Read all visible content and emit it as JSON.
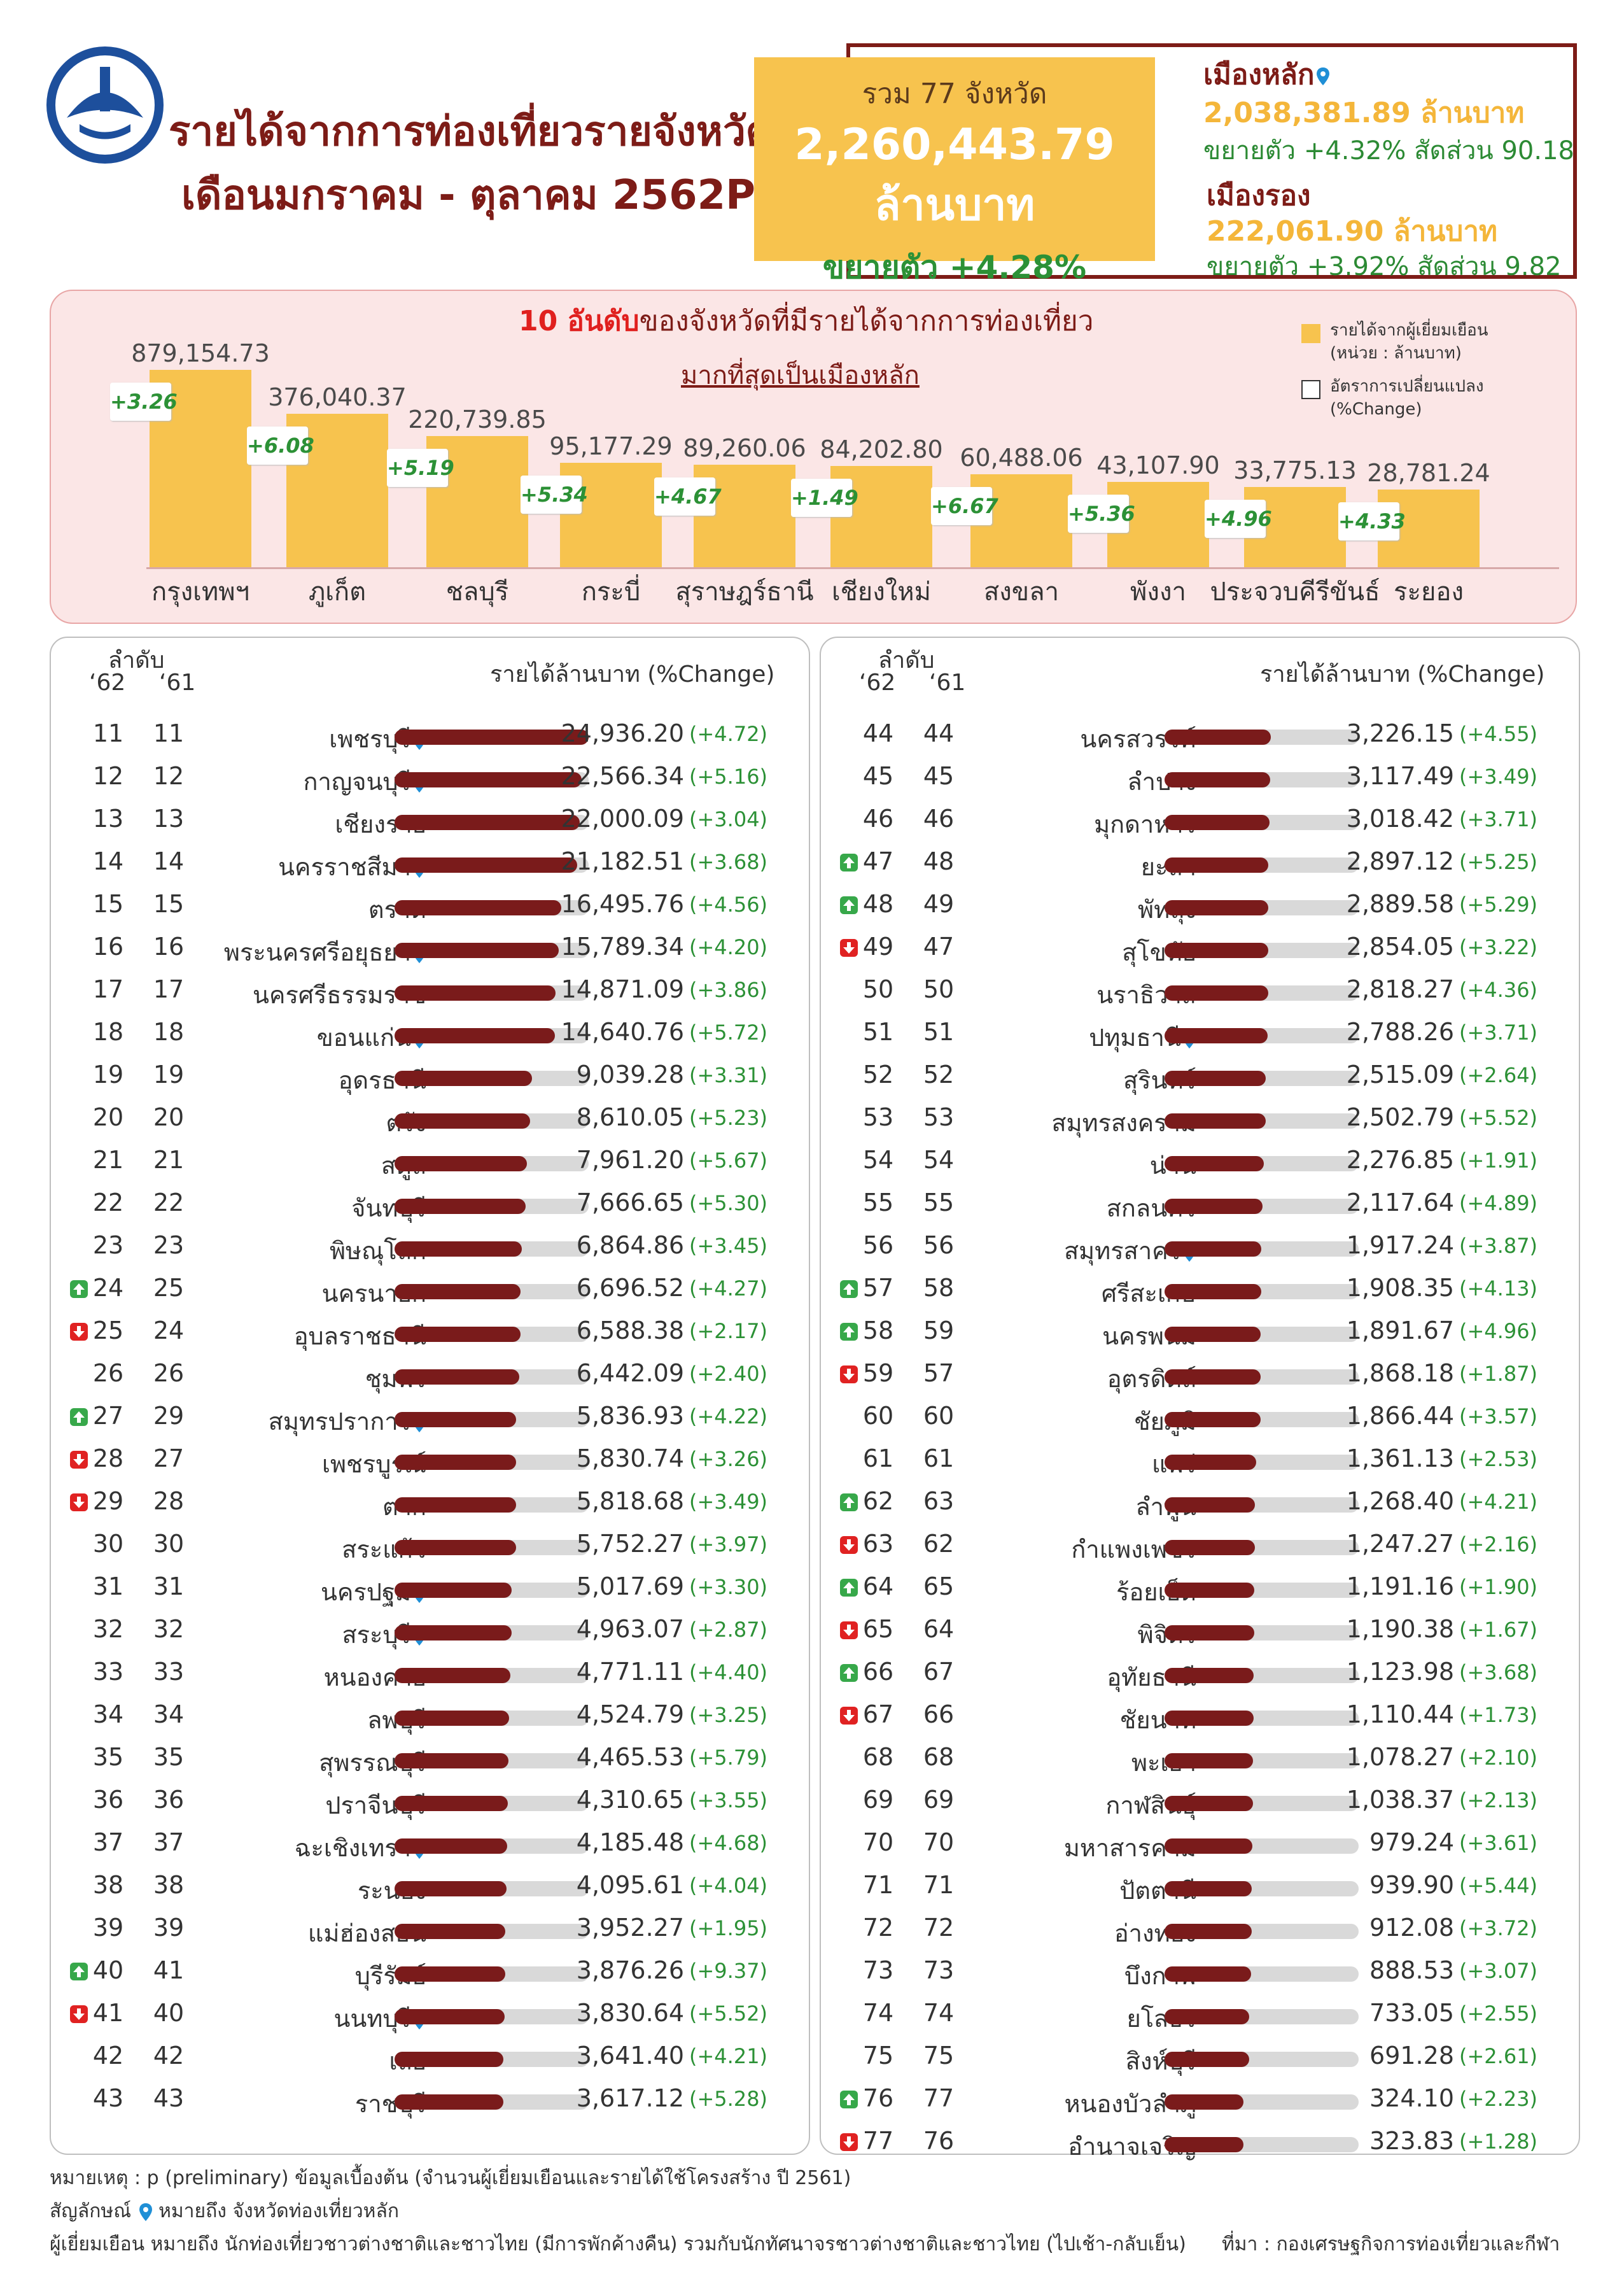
{
  "header": {
    "title_line1": "รายได้จากการท่องเที่ยวรายจังหวัด",
    "title_line2": "เดือนมกราคม - ตุลาคม 2562P",
    "logo_icon": "ministry-seal-icon"
  },
  "total": {
    "count_label": "รวม 77 จังหวัด",
    "value": "2,260,443.79",
    "unit": "ล้านบาท",
    "growth": "ขยายตัว +4.28%"
  },
  "main_city": {
    "label": "เมืองหลัก",
    "value": "2,038,381.89 ล้านบาท",
    "growth": "ขยายตัว +4.32% สัดส่วน 90.18"
  },
  "secondary_city": {
    "label": "เมืองรอง",
    "value": "222,061.90 ล้านบาท",
    "growth": "ขยายตัว +3.92% สัดส่วน 9.82"
  },
  "top10": {
    "title_highlight": "10 อันดับ",
    "title_rest": "ของจังหวัดที่มีรายได้จากการท่องเที่ยว",
    "subtitle": "มากที่สุดเป็นเมืองหลัก",
    "legend_income": "รายได้จากผู้เยี่ยมเยือน",
    "legend_income_unit": "(หน่วย : ล้านบาท)",
    "legend_change": "อัตราการเปลี่ยนแปลง",
    "legend_change_unit": "(%Change)",
    "bar_color": "#f7c34e",
    "items": [
      {
        "name": "กรุงเทพฯ",
        "value": 879154.73,
        "label": "879,154.73",
        "change": "+3.26"
      },
      {
        "name": "ภูเก็ต",
        "value": 376040.37,
        "label": "376,040.37",
        "change": "+6.08"
      },
      {
        "name": "ชลบุรี",
        "value": 220739.85,
        "label": "220,739.85",
        "change": "+5.19"
      },
      {
        "name": "กระบี่",
        "value": 95177.29,
        "label": "95,177.29",
        "change": "+5.34"
      },
      {
        "name": "สุราษฎร์ธานี",
        "value": 89260.06,
        "label": "89,260.06",
        "change": "+4.67"
      },
      {
        "name": "เชียงใหม่",
        "value": 84202.8,
        "label": "84,202.80",
        "change": "+1.49"
      },
      {
        "name": "สงขลา",
        "value": 60488.06,
        "label": "60,488.06",
        "change": "+6.67"
      },
      {
        "name": "พังงา",
        "value": 43107.9,
        "label": "43,107.90",
        "change": "+5.36"
      },
      {
        "name": "ประจวบคีรีขันธ์",
        "value": 33775.13,
        "label": "33,775.13",
        "change": "+4.96"
      },
      {
        "name": "ระยอง",
        "value": 28781.24,
        "label": "28,781.24",
        "change": "+4.33"
      }
    ]
  },
  "ranking_header": {
    "rank_label": "ลำดับ",
    "year62": "‘62",
    "year61": "‘61",
    "income_label": "รายได้ล้านบาท (%Change)"
  },
  "ranking_left": [
    {
      "r62": "11",
      "r61": "11",
      "name": "เพชรบุรี",
      "pin": true,
      "value": 24936.2,
      "label": "24,936.20",
      "change": "(+4.72)",
      "move": ""
    },
    {
      "r62": "12",
      "r61": "12",
      "name": "กาญจนบุรี",
      "pin": true,
      "value": 22566.34,
      "label": "22,566.34",
      "change": "(+5.16)",
      "move": ""
    },
    {
      "r62": "13",
      "r61": "13",
      "name": "เชียงราย",
      "pin": false,
      "value": 22000.09,
      "label": "22,000.09",
      "change": "(+3.04)",
      "move": ""
    },
    {
      "r62": "14",
      "r61": "14",
      "name": "นครราชสีมา",
      "pin": true,
      "value": 21182.51,
      "label": "21,182.51",
      "change": "(+3.68)",
      "move": ""
    },
    {
      "r62": "15",
      "r61": "15",
      "name": "ตราด",
      "pin": false,
      "value": 16495.76,
      "label": "16,495.76",
      "change": "(+4.56)",
      "move": ""
    },
    {
      "r62": "16",
      "r61": "16",
      "name": "พระนครศรีอยุธยา",
      "pin": true,
      "value": 15789.34,
      "label": "15,789.34",
      "change": "(+4.20)",
      "move": ""
    },
    {
      "r62": "17",
      "r61": "17",
      "name": "นครศรีธรรมราช",
      "pin": false,
      "value": 14871.09,
      "label": "14,871.09",
      "change": "(+3.86)",
      "move": ""
    },
    {
      "r62": "18",
      "r61": "18",
      "name": "ขอนแก่น",
      "pin": true,
      "value": 14640.76,
      "label": "14,640.76",
      "change": "(+5.72)",
      "move": ""
    },
    {
      "r62": "19",
      "r61": "19",
      "name": "อุดรธานี",
      "pin": false,
      "value": 9039.28,
      "label": "9,039.28",
      "change": "(+3.31)",
      "move": ""
    },
    {
      "r62": "20",
      "r61": "20",
      "name": "ตรัง",
      "pin": false,
      "value": 8610.05,
      "label": "8,610.05",
      "change": "(+5.23)",
      "move": ""
    },
    {
      "r62": "21",
      "r61": "21",
      "name": "สตูล",
      "pin": false,
      "value": 7961.2,
      "label": "7,961.20",
      "change": "(+5.67)",
      "move": ""
    },
    {
      "r62": "22",
      "r61": "22",
      "name": "จันทบุรี",
      "pin": false,
      "value": 7666.65,
      "label": "7,666.65",
      "change": "(+5.30)",
      "move": ""
    },
    {
      "r62": "23",
      "r61": "23",
      "name": "พิษณุโลก",
      "pin": false,
      "value": 6864.86,
      "label": "6,864.86",
      "change": "(+3.45)",
      "move": ""
    },
    {
      "r62": "24",
      "r61": "25",
      "name": "นครนายก",
      "pin": false,
      "value": 6696.52,
      "label": "6,696.52",
      "change": "(+4.27)",
      "move": "up"
    },
    {
      "r62": "25",
      "r61": "24",
      "name": "อุบลราชธานี",
      "pin": false,
      "value": 6588.38,
      "label": "6,588.38",
      "change": "(+2.17)",
      "move": "down"
    },
    {
      "r62": "26",
      "r61": "26",
      "name": "ชุมพร",
      "pin": false,
      "value": 6442.09,
      "label": "6,442.09",
      "change": "(+2.40)",
      "move": ""
    },
    {
      "r62": "27",
      "r61": "29",
      "name": "สมุทรปราการ",
      "pin": true,
      "value": 5836.93,
      "label": "5,836.93",
      "change": "(+4.22)",
      "move": "up"
    },
    {
      "r62": "28",
      "r61": "27",
      "name": "เพชรบูรณ์",
      "pin": false,
      "value": 5830.74,
      "label": "5,830.74",
      "change": "(+3.26)",
      "move": "down"
    },
    {
      "r62": "29",
      "r61": "28",
      "name": "ตาก",
      "pin": false,
      "value": 5818.68,
      "label": "5,818.68",
      "change": "(+3.49)",
      "move": "down"
    },
    {
      "r62": "30",
      "r61": "30",
      "name": "สระแก้ว",
      "pin": false,
      "value": 5752.27,
      "label": "5,752.27",
      "change": "(+3.97)",
      "move": ""
    },
    {
      "r62": "31",
      "r61": "31",
      "name": "นครปฐม",
      "pin": true,
      "value": 5017.69,
      "label": "5,017.69",
      "change": "(+3.30)",
      "move": ""
    },
    {
      "r62": "32",
      "r61": "32",
      "name": "สระบุรี",
      "pin": true,
      "value": 4963.07,
      "label": "4,963.07",
      "change": "(+2.87)",
      "move": ""
    },
    {
      "r62": "33",
      "r61": "33",
      "name": "หนองคาย",
      "pin": false,
      "value": 4771.11,
      "label": "4,771.11",
      "change": "(+4.40)",
      "move": ""
    },
    {
      "r62": "34",
      "r61": "34",
      "name": "ลพบุรี",
      "pin": false,
      "value": 4524.79,
      "label": "4,524.79",
      "change": "(+3.25)",
      "move": ""
    },
    {
      "r62": "35",
      "r61": "35",
      "name": "สุพรรณบุรี",
      "pin": false,
      "value": 4465.53,
      "label": "4,465.53",
      "change": "(+5.79)",
      "move": ""
    },
    {
      "r62": "36",
      "r61": "36",
      "name": "ปราจีนบุรี",
      "pin": false,
      "value": 4310.65,
      "label": "4,310.65",
      "change": "(+3.55)",
      "move": ""
    },
    {
      "r62": "37",
      "r61": "37",
      "name": "ฉะเชิงเทรา",
      "pin": true,
      "value": 4185.48,
      "label": "4,185.48",
      "change": "(+4.68)",
      "move": ""
    },
    {
      "r62": "38",
      "r61": "38",
      "name": "ระนอง",
      "pin": false,
      "value": 4095.61,
      "label": "4,095.61",
      "change": "(+4.04)",
      "move": ""
    },
    {
      "r62": "39",
      "r61": "39",
      "name": "แม่ฮ่องสอน",
      "pin": false,
      "value": 3952.27,
      "label": "3,952.27",
      "change": "(+1.95)",
      "move": ""
    },
    {
      "r62": "40",
      "r61": "41",
      "name": "บุรีรัมย์",
      "pin": false,
      "value": 3876.26,
      "label": "3,876.26",
      "change": "(+9.37)",
      "move": "up"
    },
    {
      "r62": "41",
      "r61": "40",
      "name": "นนทบุรี",
      "pin": true,
      "value": 3830.64,
      "label": "3,830.64",
      "change": "(+5.52)",
      "move": "down"
    },
    {
      "r62": "42",
      "r61": "42",
      "name": "เลย",
      "pin": false,
      "value": 3641.4,
      "label": "3,641.40",
      "change": "(+4.21)",
      "move": ""
    },
    {
      "r62": "43",
      "r61": "43",
      "name": "ราชบุรี",
      "pin": false,
      "value": 3617.12,
      "label": "3,617.12",
      "change": "(+5.28)",
      "move": ""
    }
  ],
  "ranking_right": [
    {
      "r62": "44",
      "r61": "44",
      "name": "นครสวรรค์",
      "pin": false,
      "value": 3226.15,
      "label": "3,226.15",
      "change": "(+4.55)",
      "move": ""
    },
    {
      "r62": "45",
      "r61": "45",
      "name": "ลำปาง",
      "pin": false,
      "value": 3117.49,
      "label": "3,117.49",
      "change": "(+3.49)",
      "move": ""
    },
    {
      "r62": "46",
      "r61": "46",
      "name": "มุกดาหาร",
      "pin": false,
      "value": 3018.42,
      "label": "3,018.42",
      "change": "(+3.71)",
      "move": ""
    },
    {
      "r62": "47",
      "r61": "48",
      "name": "ยะลา",
      "pin": false,
      "value": 2897.12,
      "label": "2,897.12",
      "change": "(+5.25)",
      "move": "up"
    },
    {
      "r62": "48",
      "r61": "49",
      "name": "พัทลุง",
      "pin": false,
      "value": 2889.58,
      "label": "2,889.58",
      "change": "(+5.29)",
      "move": "up"
    },
    {
      "r62": "49",
      "r61": "47",
      "name": "สุโขทัย",
      "pin": false,
      "value": 2854.05,
      "label": "2,854.05",
      "change": "(+3.22)",
      "move": "down"
    },
    {
      "r62": "50",
      "r61": "50",
      "name": "นราธิวาส",
      "pin": false,
      "value": 2818.27,
      "label": "2,818.27",
      "change": "(+4.36)",
      "move": ""
    },
    {
      "r62": "51",
      "r61": "51",
      "name": "ปทุมธานี",
      "pin": true,
      "value": 2788.26,
      "label": "2,788.26",
      "change": "(+3.71)",
      "move": ""
    },
    {
      "r62": "52",
      "r61": "52",
      "name": "สุรินทร์",
      "pin": false,
      "value": 2515.09,
      "label": "2,515.09",
      "change": "(+2.64)",
      "move": ""
    },
    {
      "r62": "53",
      "r61": "53",
      "name": "สมุทรสงคราม",
      "pin": false,
      "value": 2502.79,
      "label": "2,502.79",
      "change": "(+5.52)",
      "move": ""
    },
    {
      "r62": "54",
      "r61": "54",
      "name": "น่าน",
      "pin": false,
      "value": 2276.85,
      "label": "2,276.85",
      "change": "(+1.91)",
      "move": ""
    },
    {
      "r62": "55",
      "r61": "55",
      "name": "สกลนคร",
      "pin": false,
      "value": 2117.64,
      "label": "2,117.64",
      "change": "(+4.89)",
      "move": ""
    },
    {
      "r62": "56",
      "r61": "56",
      "name": "สมุทรสาคร",
      "pin": true,
      "value": 1917.24,
      "label": "1,917.24",
      "change": "(+3.87)",
      "move": ""
    },
    {
      "r62": "57",
      "r61": "58",
      "name": "ศรีสะเกษ",
      "pin": false,
      "value": 1908.35,
      "label": "1,908.35",
      "change": "(+4.13)",
      "move": "up"
    },
    {
      "r62": "58",
      "r61": "59",
      "name": "นครพนม",
      "pin": false,
      "value": 1891.67,
      "label": "1,891.67",
      "change": "(+4.96)",
      "move": "up"
    },
    {
      "r62": "59",
      "r61": "57",
      "name": "อุตรดิตถ์",
      "pin": false,
      "value": 1868.18,
      "label": "1,868.18",
      "change": "(+1.87)",
      "move": "down"
    },
    {
      "r62": "60",
      "r61": "60",
      "name": "ชัยภูมิ",
      "pin": false,
      "value": 1866.44,
      "label": "1,866.44",
      "change": "(+3.57)",
      "move": ""
    },
    {
      "r62": "61",
      "r61": "61",
      "name": "แพร่",
      "pin": false,
      "value": 1361.13,
      "label": "1,361.13",
      "change": "(+2.53)",
      "move": ""
    },
    {
      "r62": "62",
      "r61": "63",
      "name": "ลำพูน",
      "pin": false,
      "value": 1268.4,
      "label": "1,268.40",
      "change": "(+4.21)",
      "move": "up"
    },
    {
      "r62": "63",
      "r61": "62",
      "name": "กำแพงเพชร",
      "pin": false,
      "value": 1247.27,
      "label": "1,247.27",
      "change": "(+2.16)",
      "move": "down"
    },
    {
      "r62": "64",
      "r61": "65",
      "name": "ร้อยเอ็ด",
      "pin": false,
      "value": 1191.16,
      "label": "1,191.16",
      "change": "(+1.90)",
      "move": "up"
    },
    {
      "r62": "65",
      "r61": "64",
      "name": "พิจิตร",
      "pin": false,
      "value": 1190.38,
      "label": "1,190.38",
      "change": "(+1.67)",
      "move": "down"
    },
    {
      "r62": "66",
      "r61": "67",
      "name": "อุทัยธานี",
      "pin": false,
      "value": 1123.98,
      "label": "1,123.98",
      "change": "(+3.68)",
      "move": "up"
    },
    {
      "r62": "67",
      "r61": "66",
      "name": "ชัยนาท",
      "pin": false,
      "value": 1110.44,
      "label": "1,110.44",
      "change": "(+1.73)",
      "move": "down"
    },
    {
      "r62": "68",
      "r61": "68",
      "name": "พะเยา",
      "pin": false,
      "value": 1078.27,
      "label": "1,078.27",
      "change": "(+2.10)",
      "move": ""
    },
    {
      "r62": "69",
      "r61": "69",
      "name": "กาฬสินธุ์",
      "pin": false,
      "value": 1038.37,
      "label": "1,038.37",
      "change": "(+2.13)",
      "move": ""
    },
    {
      "r62": "70",
      "r61": "70",
      "name": "มหาสารคาม",
      "pin": false,
      "value": 979.24,
      "label": "979.24",
      "change": "(+3.61)",
      "move": ""
    },
    {
      "r62": "71",
      "r61": "71",
      "name": "ปัตตานี",
      "pin": false,
      "value": 939.9,
      "label": "939.90",
      "change": "(+5.44)",
      "move": ""
    },
    {
      "r62": "72",
      "r61": "72",
      "name": "อ่างทอง",
      "pin": false,
      "value": 912.08,
      "label": "912.08",
      "change": "(+3.72)",
      "move": ""
    },
    {
      "r62": "73",
      "r61": "73",
      "name": "บึงกาฬ",
      "pin": false,
      "value": 888.53,
      "label": "888.53",
      "change": "(+3.07)",
      "move": ""
    },
    {
      "r62": "74",
      "r61": "74",
      "name": "ยโสธร",
      "pin": false,
      "value": 733.05,
      "label": "733.05",
      "change": "(+2.55)",
      "move": ""
    },
    {
      "r62": "75",
      "r61": "75",
      "name": "สิงห์บุรี",
      "pin": false,
      "value": 691.28,
      "label": "691.28",
      "change": "(+2.61)",
      "move": ""
    },
    {
      "r62": "76",
      "r61": "77",
      "name": "หนองบัวลำภู",
      "pin": false,
      "value": 324.1,
      "label": "324.10",
      "change": "(+2.23)",
      "move": "up"
    },
    {
      "r62": "77",
      "r61": "76",
      "name": "อำนาจเจริญ",
      "pin": false,
      "value": 323.83,
      "label": "323.83",
      "change": "(+1.28)",
      "move": "down"
    }
  ],
  "footer": {
    "note": "หมายเหตุ : p (preliminary) ข้อมูลเบื้องต้น (จำนวนผู้เยี่ยมเยือนและรายได้ใช้โครงสร้าง ปี 2561)",
    "symbol_label": "สัญลักษณ์",
    "symbol_meaning": "หมายถึง จังหวัดท่องเที่ยวหลัก",
    "visitor_def": "ผู้เยี่ยมเยือน หมายถึง นักท่องเที่ยวชาวต่างชาติและชาวไทย (มีการพักค้างคืน) รวมกับนักทัศนาจรชาวต่างชาติและชาวไทย (ไปเช้า-กลับเย็น)",
    "source_label": "ที่มา :",
    "source": "กองเศรษฐกิจการท่องเที่ยวและกีฬา"
  },
  "colors": {
    "title": "#7d1c17",
    "accent_yellow": "#f7c34e",
    "growth_green": "#2c9136",
    "bar_fill": "#7a1b1b",
    "up_arrow": "#37a84a",
    "down_arrow": "#e02222",
    "pin": "#1f8fd6"
  }
}
